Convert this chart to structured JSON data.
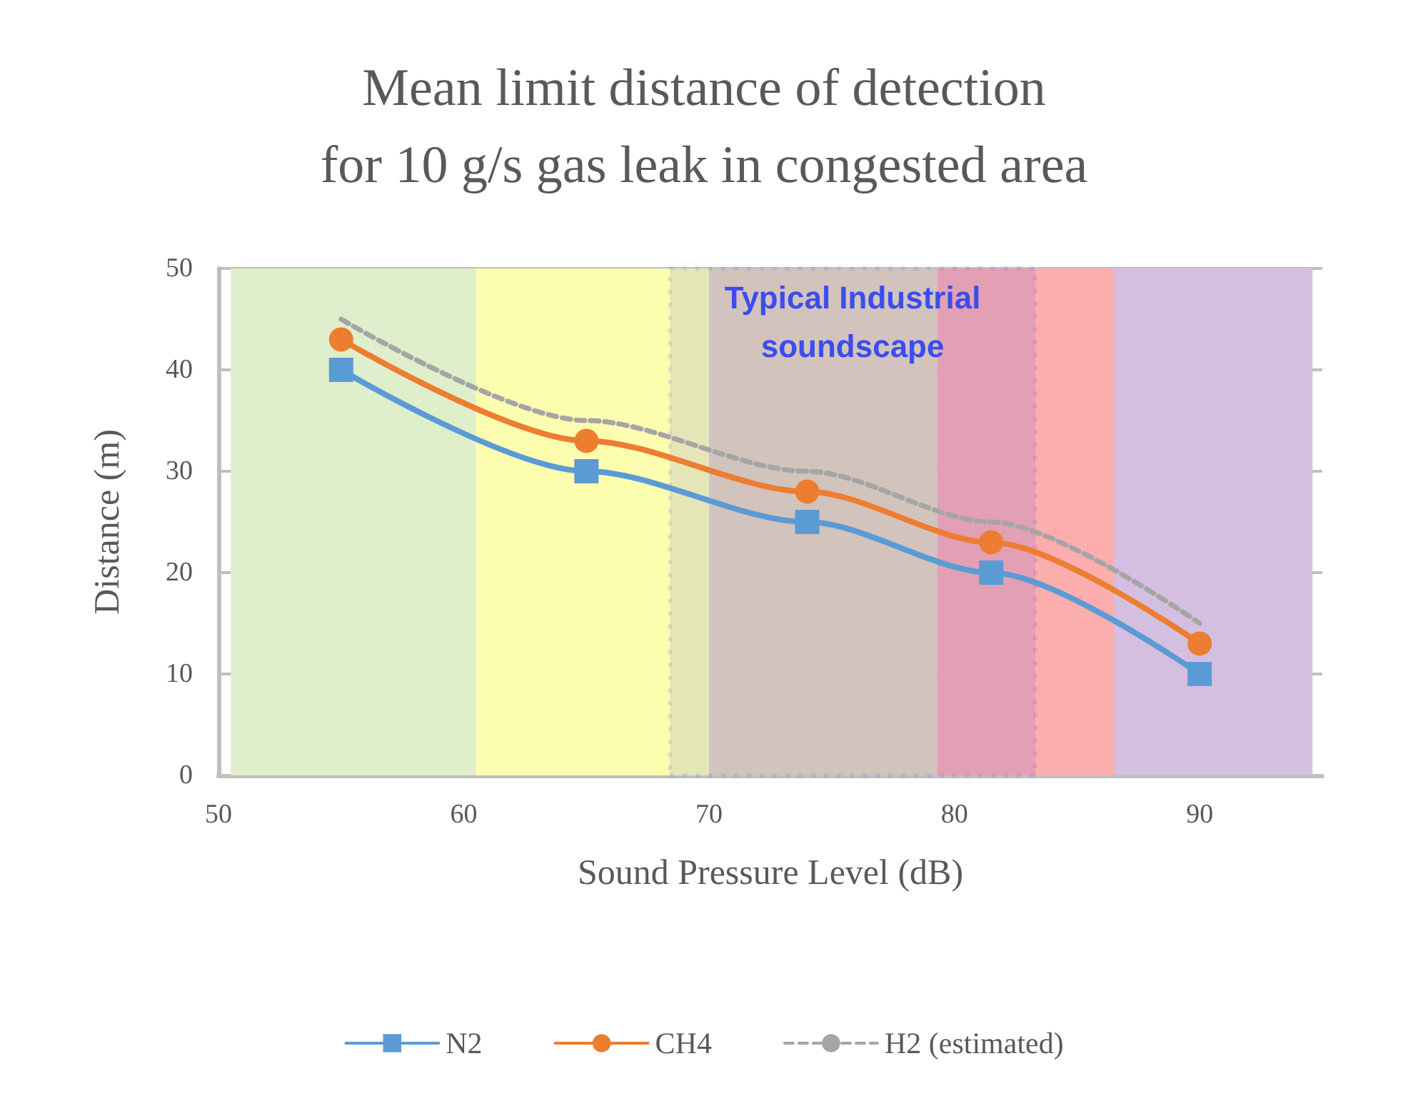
{
  "chart_data": {
    "type": "line",
    "title": "Mean limit distance of detection\nfor 10 g/s gas leak in congested area",
    "xlabel": "Sound Pressure Level (dB)",
    "ylabel": "Distance (m)",
    "x": [
      55,
      65,
      74,
      81.5,
      90
    ],
    "series": [
      {
        "name": "N2",
        "color": "#5b9bd5",
        "marker": "square",
        "values": [
          40,
          30,
          25,
          20,
          10
        ]
      },
      {
        "name": "CH4",
        "color": "#ed7d31",
        "marker": "circle",
        "values": [
          43,
          33,
          28,
          23,
          13
        ]
      },
      {
        "name": "H2 (estimated)",
        "color": "#a5a5a5",
        "marker": "none",
        "line_style": "dashed",
        "values": [
          45,
          35,
          30,
          25,
          15
        ]
      }
    ],
    "xlim": [
      50,
      95
    ],
    "xticks": [
      50,
      60,
      70,
      80,
      90
    ],
    "ylim": [
      0,
      50
    ],
    "yticks": [
      0,
      10,
      20,
      30,
      40,
      50
    ],
    "grid": "y",
    "legend": "bottom",
    "bands": [
      {
        "axis": "x",
        "from": 50.5,
        "to": 60.5,
        "color": "#dfeecb"
      },
      {
        "axis": "x",
        "from": 60.5,
        "to": 70,
        "color": "#fdfdb0"
      },
      {
        "axis": "x",
        "from": 70,
        "to": 79.3,
        "color": "#e9d5b6"
      },
      {
        "axis": "x",
        "from": 79.3,
        "to": 86.5,
        "color": "#fcadad"
      },
      {
        "axis": "x",
        "from": 86.5,
        "to": 94.6,
        "color": "#d5bfe0"
      },
      {
        "axis": "x",
        "from": 68.4,
        "to": 83.3,
        "label": "Typical Industrial\nsoundscape",
        "color": "#3b4cf0"
      }
    ]
  }
}
